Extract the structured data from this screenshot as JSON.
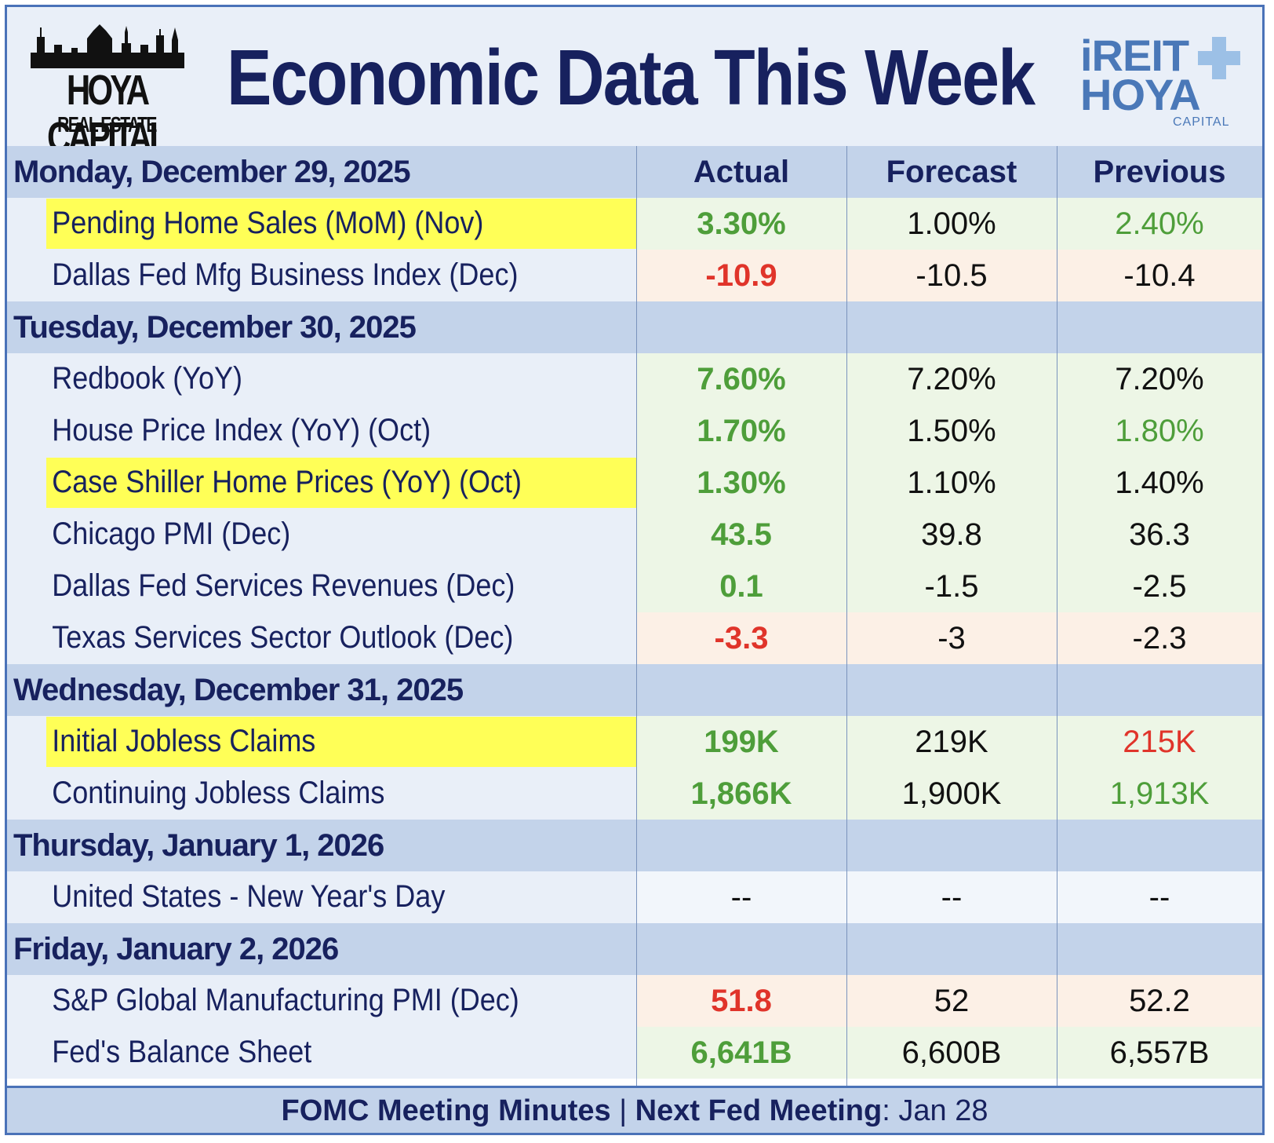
{
  "header": {
    "title": "Economic Data This Week",
    "left_logo": {
      "brand": "HOYA CAPITAL",
      "sub": "REAL ESTATE"
    },
    "right_logo": {
      "line1": "iREIT",
      "line2": "HOYA",
      "line3": "CAPITAL"
    }
  },
  "columns": {
    "label": "Monday, December 29, 2025",
    "actual": "Actual",
    "forecast": "Forecast",
    "previous": "Previous"
  },
  "days": [
    {
      "label": "Tuesday, December 30, 2025"
    },
    {
      "label": "Wednesday, December 31, 2025"
    },
    {
      "label": "Thursday, January 1, 2026"
    },
    {
      "label": "Friday, January 2, 2026"
    }
  ],
  "rows": [
    {
      "name": "Pending Home Sales (MoM) (Nov)",
      "actual": "3.30%",
      "forecast": "1.00%",
      "previous": "2.40%"
    },
    {
      "name": "Dallas Fed Mfg Business Index (Dec)",
      "actual": "-10.9",
      "forecast": "-10.5",
      "previous": "-10.4"
    },
    {
      "name": "Redbook (YoY)",
      "actual": "7.60%",
      "forecast": "7.20%",
      "previous": "7.20%"
    },
    {
      "name": "House Price Index (YoY) (Oct)",
      "actual": "1.70%",
      "forecast": "1.50%",
      "previous": "1.80%"
    },
    {
      "name": "Case Shiller Home Prices (YoY) (Oct)",
      "actual": "1.30%",
      "forecast": "1.10%",
      "previous": "1.40%"
    },
    {
      "name": "Chicago PMI (Dec)",
      "actual": "43.5",
      "forecast": "39.8",
      "previous": "36.3"
    },
    {
      "name": "Dallas Fed Services Revenues (Dec)",
      "actual": "0.1",
      "forecast": "-1.5",
      "previous": "-2.5"
    },
    {
      "name": "Texas Services Sector Outlook (Dec)",
      "actual": "-3.3",
      "forecast": "-3",
      "previous": "-2.3"
    },
    {
      "name": "Initial Jobless Claims",
      "actual": "199K",
      "forecast": "219K",
      "previous": "215K"
    },
    {
      "name": "Continuing Jobless Claims",
      "actual": "1,866K",
      "forecast": "1,900K",
      "previous": "1,913K"
    },
    {
      "name": "United States - New Year's Day",
      "actual": "--",
      "forecast": "--",
      "previous": "--"
    },
    {
      "name": "S&P Global Manufacturing PMI (Dec)",
      "actual": "51.8",
      "forecast": "52",
      "previous": "52.2"
    },
    {
      "name": "Fed's Balance Sheet",
      "actual": "6,641B",
      "forecast": "6,600B",
      "previous": "6,557B"
    }
  ],
  "footer": {
    "part1": "FOMC Meeting Minutes",
    "sep": " | ",
    "part2": "Next Fed Meeting",
    "part3": ": Jan 28"
  },
  "colors": {
    "navy": "#17215e",
    "green": "#4e9e3a",
    "red": "#e0342a",
    "highlight": "#ffff57",
    "border": "#4a72b8",
    "day_row": "#c3d3ea"
  }
}
